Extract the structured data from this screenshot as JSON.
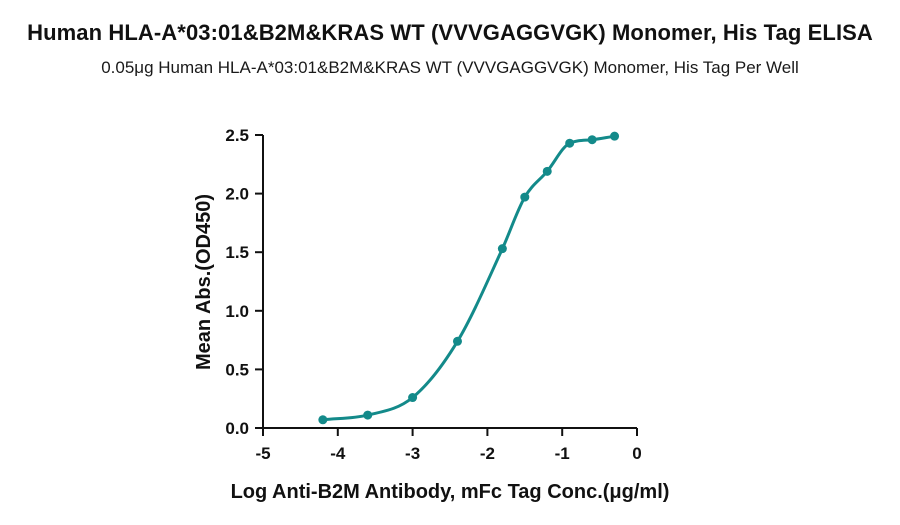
{
  "chart_data": {
    "type": "scatter",
    "title": "Human HLA-A*03:01&B2M&KRAS WT (VVVGAGGVGK) Monomer, His Tag ELISA",
    "subtitle": "0.05μg Human HLA-A*03:01&B2M&KRAS WT (VVVGAGGVGK) Monomer, His Tag Per Well",
    "xlabel": "Log Anti-B2M Antibody, mFc Tag Conc.(μg/ml)",
    "ylabel": "Mean Abs.(OD450)",
    "xlim": [
      -5,
      0
    ],
    "ylim": [
      0,
      2.5
    ],
    "x_ticks": [
      -5,
      -4,
      -3,
      -2,
      -1,
      0
    ],
    "y_ticks": [
      "0.0",
      "0.5",
      "1.0",
      "1.5",
      "2.0",
      "2.5"
    ],
    "grid": false,
    "fit": "sigmoidal (4PL) curve",
    "color": "#138a8a",
    "series": [
      {
        "x": [
          -4.2,
          -3.6,
          -3.0,
          -2.4,
          -1.8,
          -1.5,
          -1.2,
          -0.9,
          -0.6,
          -0.3
        ],
        "y": [
          0.07,
          0.11,
          0.26,
          0.74,
          1.53,
          1.97,
          2.19,
          2.43,
          2.46,
          2.49
        ]
      }
    ]
  }
}
